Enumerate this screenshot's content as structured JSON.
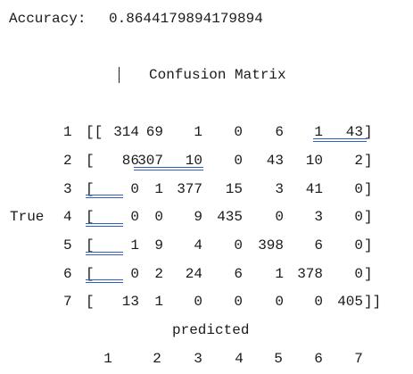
{
  "accuracy": {
    "label": "Accuracy:",
    "value": "0.8644179894179894"
  },
  "matrix_title": "Confusion Matrix",
  "y_label": "True",
  "x_label": "predicted",
  "row_labels": [
    "1",
    "2",
    "3",
    "4",
    "5",
    "6",
    "7"
  ],
  "col_labels": [
    "1",
    "2",
    "3",
    "4",
    "5",
    "6",
    "7"
  ],
  "row_prefix": [
    "[[",
    "[",
    "[",
    "[",
    "[",
    "[",
    "["
  ],
  "row_suffix": [
    "]",
    "]",
    "]",
    "]",
    "]",
    "]",
    "]]"
  ],
  "matrix": [
    [
      "314",
      "69",
      "1",
      "0",
      "6",
      "1",
      "43"
    ],
    [
      "86",
      "307",
      "10",
      "0",
      "43",
      "10",
      "2"
    ],
    [
      "0",
      "1",
      "377",
      "15",
      "3",
      "41",
      "0"
    ],
    [
      "0",
      "0",
      "9",
      "435",
      "0",
      "3",
      "0"
    ],
    [
      "1",
      "9",
      "4",
      "0",
      "398",
      "6",
      "0"
    ],
    [
      "0",
      "2",
      "24",
      "6",
      "1",
      "378",
      "0"
    ],
    [
      "13",
      "1",
      "0",
      "0",
      "0",
      "0",
      "405"
    ]
  ]
}
